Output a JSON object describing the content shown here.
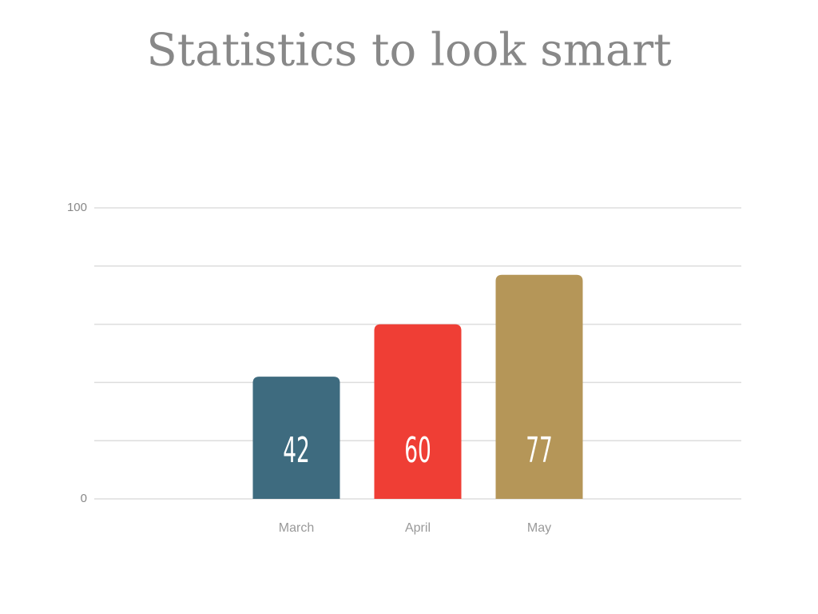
{
  "chart_data": {
    "type": "bar",
    "title": "Statistics to look smart",
    "categories": [
      "March",
      "April",
      "May"
    ],
    "values": [
      42,
      60,
      77
    ],
    "colors": [
      "#3e6b7f",
      "#ef3e35",
      "#b59658"
    ],
    "ylim": [
      0,
      100
    ],
    "yticks": [
      0,
      100
    ],
    "ygrid": [
      0,
      20,
      40,
      60,
      80,
      100
    ],
    "grid": true,
    "data_labels": true
  }
}
